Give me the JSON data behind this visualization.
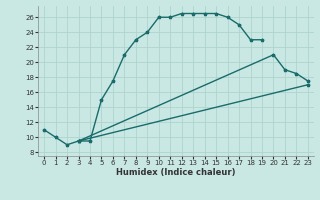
{
  "xlabel": "Humidex (Indice chaleur)",
  "background_color": "#c9e8e4",
  "grid_color": "#aed4ce",
  "line_color": "#1a6b6b",
  "xlim": [
    -0.5,
    23.5
  ],
  "ylim": [
    7.5,
    27.5
  ],
  "xticks": [
    0,
    1,
    2,
    3,
    4,
    5,
    6,
    7,
    8,
    9,
    10,
    11,
    12,
    13,
    14,
    15,
    16,
    17,
    18,
    19,
    20,
    21,
    22,
    23
  ],
  "yticks": [
    8,
    10,
    12,
    14,
    16,
    18,
    20,
    22,
    24,
    26
  ],
  "curve1_x": [
    0,
    1,
    2,
    3,
    4,
    5,
    6,
    7,
    8,
    9,
    10,
    11,
    12,
    13,
    14,
    15,
    16,
    17,
    18,
    19
  ],
  "curve1_y": [
    11,
    10,
    9,
    9.5,
    9.5,
    15,
    17.5,
    21,
    23,
    24,
    26,
    26,
    26.5,
    26.5,
    26.5,
    26.5,
    26,
    25,
    23,
    23
  ],
  "curve2_x": [
    3,
    20,
    21,
    22,
    23
  ],
  "curve2_y": [
    9.5,
    21,
    19,
    18.5,
    17.5
  ],
  "curve3_x": [
    3,
    23
  ],
  "curve3_y": [
    9.5,
    17
  ],
  "tick_fontsize": 5,
  "xlabel_fontsize": 6,
  "lw": 1.0,
  "ms": 2.5
}
